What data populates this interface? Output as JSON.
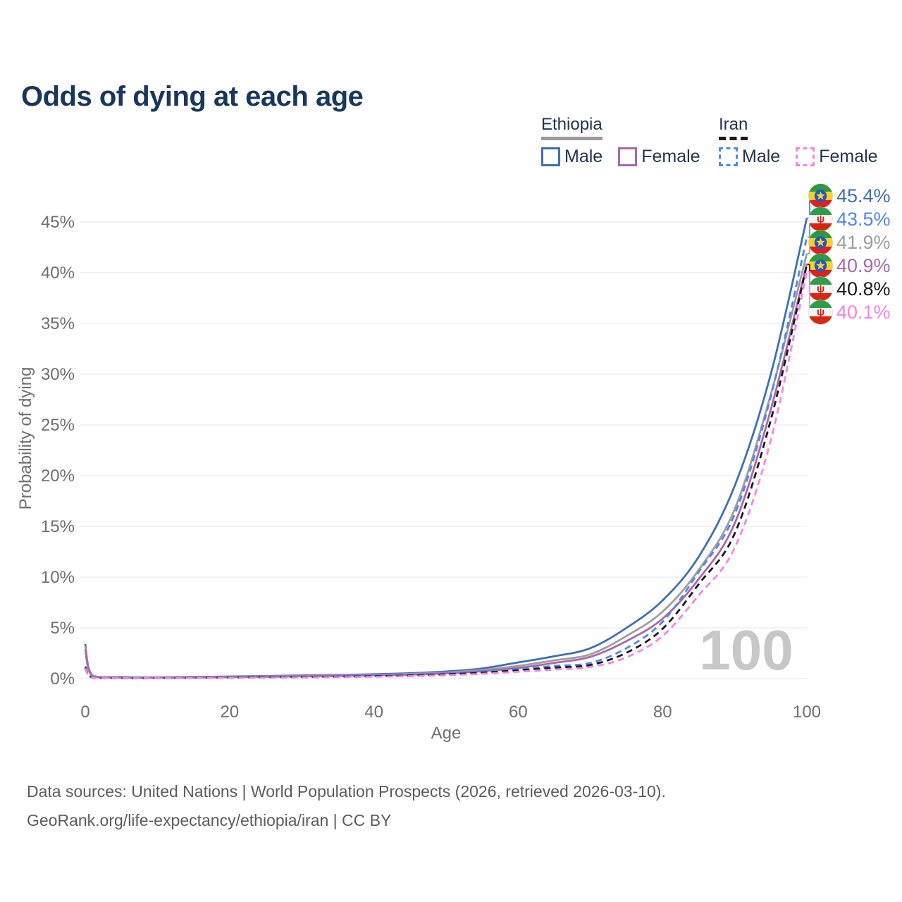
{
  "header": {
    "title": "Odds of dying at each age"
  },
  "legend": {
    "groups": [
      {
        "label": "Ethiopia",
        "line_style": "solid",
        "line_color": "#9a9a9a",
        "items": [
          {
            "label": "Male",
            "color": "#3e6fb5",
            "style": "solid"
          },
          {
            "label": "Female",
            "color": "#ad66ad",
            "style": "solid"
          }
        ]
      },
      {
        "label": "Iran",
        "line_style": "dashed",
        "line_color": "#1a1a1a",
        "items": [
          {
            "label": "Male",
            "color": "#4d87f0",
            "style": "dashed"
          },
          {
            "label": "Female",
            "color": "#fb80e8",
            "style": "dashed"
          }
        ]
      }
    ]
  },
  "watermark_age": "100",
  "footer": {
    "line1": "Data sources: United Nations | World Population Prospects (2026, retrieved 2026-03-10).",
    "line2": "GeoRank.org/life-expectancy/ethiopia/iran | CC BY"
  },
  "flag_colors": {
    "ethiopia": {
      "top": "#2d9a3f",
      "mid": "#f5d327",
      "bottom": "#dd2020",
      "emblem_bg": "#2456c5",
      "emblem": "#f5d327"
    },
    "iran": {
      "top": "#2a9f4a",
      "mid": "#f4f4f4",
      "bottom": "#d62612",
      "emblem": "#cc2222"
    }
  },
  "chart_data": {
    "type": "line",
    "title": "Odds of dying at each age",
    "xlabel": "Age",
    "ylabel": "Probability of dying",
    "xlim": [
      0,
      100
    ],
    "ylim_pct": [
      0,
      47
    ],
    "grid": true,
    "legend_position": "top-right",
    "x_ticks": [
      {
        "age": 0,
        "label": "0"
      },
      {
        "age": 20,
        "label": "20"
      },
      {
        "age": 40,
        "label": "40"
      },
      {
        "age": 60,
        "label": "60"
      },
      {
        "age": 80,
        "label": "80"
      },
      {
        "age": 100,
        "label": "100"
      }
    ],
    "y_ticks": [
      {
        "pct": 0,
        "label": "0%"
      },
      {
        "pct": 5,
        "label": "5%"
      },
      {
        "pct": 10,
        "label": "10%"
      },
      {
        "pct": 15,
        "label": "15%"
      },
      {
        "pct": 20,
        "label": "20%"
      },
      {
        "pct": 25,
        "label": "25%"
      },
      {
        "pct": 30,
        "label": "30%"
      },
      {
        "pct": 35,
        "label": "35%"
      },
      {
        "pct": 40,
        "label": "40%"
      },
      {
        "pct": 45,
        "label": "45%"
      }
    ],
    "ages": [
      0,
      1,
      5,
      10,
      15,
      20,
      25,
      30,
      35,
      40,
      45,
      50,
      55,
      60,
      65,
      70,
      75,
      80,
      85,
      90,
      95,
      100
    ],
    "series": [
      {
        "name": "Ethiopia Male",
        "country": "Ethiopia",
        "sex": "Male",
        "style": "solid",
        "color": "#3e6fb5",
        "end_value_pct": 45.4,
        "end_label": "45.4%",
        "values_pct": [
          3.4,
          0.3,
          0.15,
          0.12,
          0.16,
          0.21,
          0.26,
          0.31,
          0.36,
          0.43,
          0.53,
          0.7,
          1.0,
          1.6,
          2.2,
          3.0,
          5.0,
          7.7,
          12.0,
          19.0,
          30.0,
          45.4
        ]
      },
      {
        "name": "Iran Male",
        "country": "Iran",
        "sex": "Male",
        "style": "dashed",
        "color": "#4d87f0",
        "end_value_pct": 43.5,
        "end_label": "43.5%",
        "values_pct": [
          1.2,
          0.1,
          0.06,
          0.06,
          0.1,
          0.14,
          0.17,
          0.2,
          0.24,
          0.29,
          0.37,
          0.5,
          0.68,
          0.95,
          1.25,
          1.55,
          3.0,
          5.6,
          10.5,
          16.2,
          27.8,
          43.5
        ]
      },
      {
        "name": "Ethiopia Both sexes",
        "country": "Ethiopia",
        "sex": "Both",
        "style": "solid",
        "color": "#9e9e9e",
        "end_value_pct": 41.9,
        "end_label": "41.9%",
        "values_pct": [
          3.15,
          0.27,
          0.13,
          0.11,
          0.14,
          0.18,
          0.22,
          0.26,
          0.31,
          0.37,
          0.46,
          0.6,
          0.85,
          1.25,
          1.8,
          2.4,
          4.2,
          6.6,
          10.7,
          16.7,
          28.0,
          41.9
        ]
      },
      {
        "name": "Ethiopia Female",
        "country": "Ethiopia",
        "sex": "Female",
        "style": "solid",
        "color": "#ad66ad",
        "end_value_pct": 40.9,
        "end_label": "40.9%",
        "values_pct": [
          2.9,
          0.25,
          0.11,
          0.09,
          0.12,
          0.15,
          0.18,
          0.22,
          0.26,
          0.31,
          0.39,
          0.52,
          0.73,
          1.05,
          1.55,
          2.15,
          3.7,
          5.9,
          9.8,
          15.3,
          26.5,
          40.9
        ]
      },
      {
        "name": "Iran Both sexes",
        "country": "Iran",
        "sex": "Both",
        "style": "dashed",
        "color": "#1a1a1a",
        "end_value_pct": 40.8,
        "end_label": "40.8%",
        "values_pct": [
          1.1,
          0.09,
          0.05,
          0.05,
          0.08,
          0.11,
          0.14,
          0.16,
          0.19,
          0.23,
          0.3,
          0.42,
          0.58,
          0.82,
          1.08,
          1.35,
          2.55,
          4.9,
          9.3,
          14.3,
          25.5,
          40.8
        ]
      },
      {
        "name": "Iran Female",
        "country": "Iran",
        "sex": "Female",
        "style": "dashed",
        "color": "#fb80e8",
        "end_value_pct": 40.1,
        "end_label": "40.1%",
        "values_pct": [
          1.0,
          0.08,
          0.05,
          0.04,
          0.06,
          0.08,
          0.1,
          0.12,
          0.15,
          0.18,
          0.24,
          0.33,
          0.47,
          0.68,
          0.9,
          1.15,
          2.1,
          4.2,
          8.2,
          12.9,
          23.5,
          40.1
        ]
      }
    ]
  }
}
